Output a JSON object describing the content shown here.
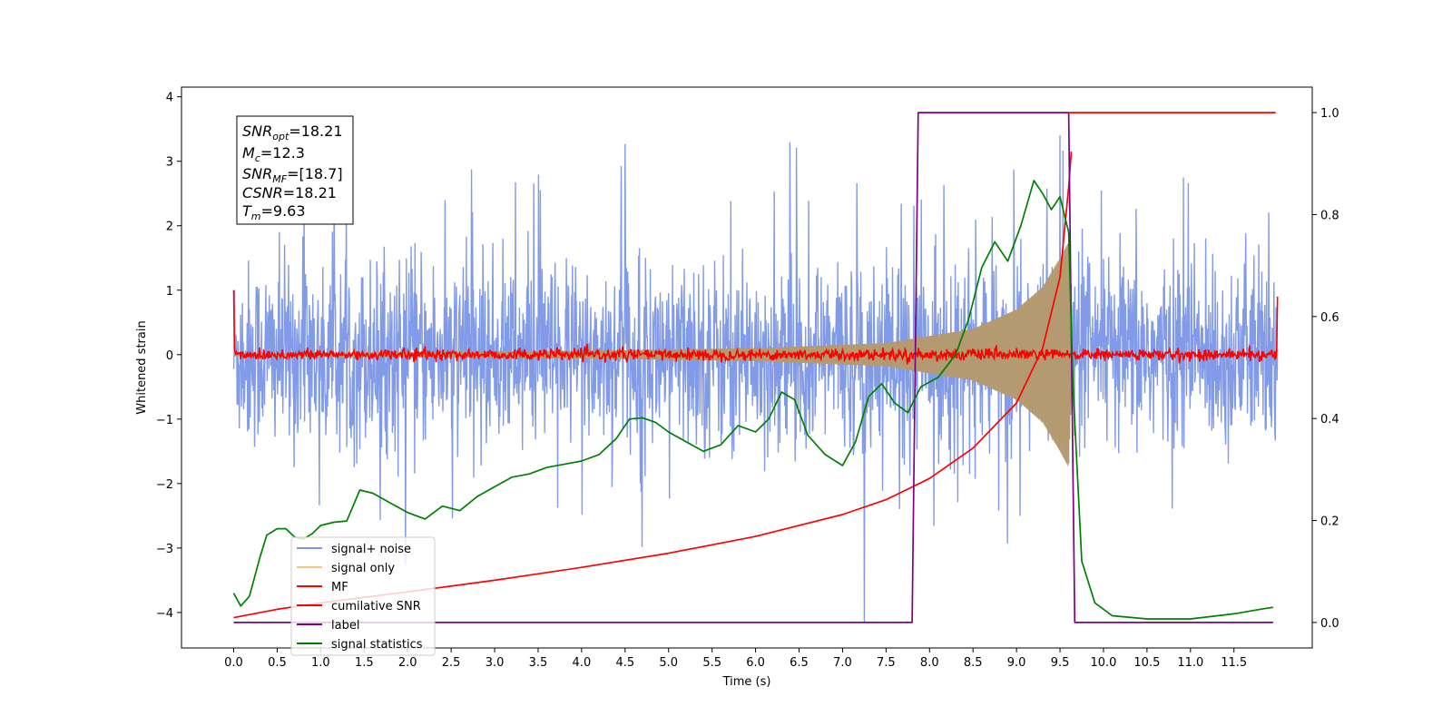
{
  "chart_data": {
    "type": "line",
    "xlabel": "Time (s)",
    "ylabel": "Whitened strain",
    "xlim": [
      -0.6,
      12.4
    ],
    "ylim": [
      -4.55,
      4.15
    ],
    "y2lim": [
      -0.05,
      1.05
    ],
    "x_ticks": [
      "0.0",
      "0.5",
      "1.0",
      "1.5",
      "2.0",
      "2.5",
      "3.0",
      "3.5",
      "4.0",
      "4.5",
      "5.0",
      "5.5",
      "6.0",
      "6.5",
      "7.0",
      "7.5",
      "8.0",
      "8.5",
      "9.0",
      "9.5",
      "10.0",
      "10.5",
      "11.0",
      "11.5"
    ],
    "y_ticks": [
      4,
      3,
      2,
      1,
      0,
      -1,
      -2,
      -3,
      -4
    ],
    "y2_ticks": [
      "0.0",
      "0.2",
      "0.4",
      "0.6",
      "0.8",
      "1.0"
    ],
    "annotation": {
      "snr_opt": {
        "main": "SNR",
        "sub": "opt",
        "value": "=18.21"
      },
      "mc": {
        "main": "M",
        "sub": "c",
        "value": "=12.3"
      },
      "snr_mf": {
        "main": "SNR",
        "sub": "MF",
        "value": "=[18.7]"
      },
      "csnr": {
        "main": "CSNR",
        "value": "=18.21"
      },
      "tm": {
        "main": "T",
        "sub": "m",
        "value": "=9.63"
      }
    },
    "legend": {
      "placement": "lower-left",
      "entries": [
        "signal+ noise",
        "signal only",
        "MF",
        "cumilative SNR",
        "label",
        "signal statistics"
      ]
    },
    "colors": {
      "signal_noise": "#7b96e8",
      "signal_only": "#f5c77e",
      "mf": "#ff0000",
      "cumulative_snr": "#ff0000",
      "label": "#800080",
      "signal_statistics": "#008000"
    },
    "series": [
      {
        "name": "signal+ noise",
        "axis": "left",
        "style": "noise",
        "x_range": [
          0.0,
          12.0
        ],
        "noise_band": [
          -1.5,
          1.5
        ],
        "spike_max": 3.4,
        "spike_min": -4.15
      },
      {
        "name": "signal only",
        "axis": "left",
        "style": "chirp",
        "x_range": [
          0.0,
          9.65
        ],
        "envelope": [
          [
            0.0,
            0.02
          ],
          [
            4.0,
            0.06
          ],
          [
            6.0,
            0.1
          ],
          [
            7.5,
            0.18
          ],
          [
            8.5,
            0.4
          ],
          [
            9.0,
            0.7
          ],
          [
            9.3,
            1.05
          ],
          [
            9.5,
            1.5
          ],
          [
            9.6,
            1.75
          ],
          [
            9.65,
            0.0
          ]
        ]
      },
      {
        "name": "MF",
        "axis": "left",
        "style": "noise",
        "x_range": [
          0.0,
          12.0
        ],
        "center": 0.0,
        "amplitude": 0.08,
        "edge_start": 1.0,
        "edge_end": 0.9
      },
      {
        "name": "cumilative SNR",
        "axis": "left",
        "style": "line",
        "points": [
          [
            0.0,
            -4.08
          ],
          [
            0.5,
            -3.95
          ],
          [
            1.0,
            -3.85
          ],
          [
            2.0,
            -3.68
          ],
          [
            3.0,
            -3.5
          ],
          [
            4.0,
            -3.3
          ],
          [
            5.0,
            -3.08
          ],
          [
            6.0,
            -2.82
          ],
          [
            7.0,
            -2.48
          ],
          [
            7.5,
            -2.25
          ],
          [
            8.0,
            -1.92
          ],
          [
            8.5,
            -1.45
          ],
          [
            9.0,
            -0.75
          ],
          [
            9.3,
            0.1
          ],
          [
            9.5,
            1.2
          ],
          [
            9.6,
            2.6
          ],
          [
            9.63,
            3.15
          ]
        ]
      },
      {
        "name": "label",
        "axis": "right",
        "style": "line",
        "points": [
          [
            0.0,
            0.0
          ],
          [
            7.8,
            0.0
          ],
          [
            7.87,
            1.0
          ],
          [
            9.6,
            1.0
          ],
          [
            9.67,
            0.0
          ],
          [
            11.95,
            0.0
          ]
        ]
      },
      {
        "name": "MF",
        "axis": "right",
        "style": "line",
        "points": [
          [
            9.6,
            1.0
          ],
          [
            11.98,
            1.0
          ]
        ]
      },
      {
        "name": "signal statistics",
        "axis": "left",
        "style": "line",
        "points": [
          [
            0.0,
            -3.7
          ],
          [
            0.08,
            -3.9
          ],
          [
            0.18,
            -3.75
          ],
          [
            0.3,
            -3.15
          ],
          [
            0.38,
            -2.8
          ],
          [
            0.5,
            -2.7
          ],
          [
            0.6,
            -2.7
          ],
          [
            0.7,
            -2.83
          ],
          [
            0.8,
            -2.86
          ],
          [
            0.9,
            -2.78
          ],
          [
            1.0,
            -2.65
          ],
          [
            1.15,
            -2.6
          ],
          [
            1.3,
            -2.58
          ],
          [
            1.45,
            -2.1
          ],
          [
            1.6,
            -2.15
          ],
          [
            1.8,
            -2.3
          ],
          [
            2.0,
            -2.45
          ],
          [
            2.2,
            -2.55
          ],
          [
            2.4,
            -2.35
          ],
          [
            2.6,
            -2.42
          ],
          [
            2.8,
            -2.2
          ],
          [
            3.0,
            -2.05
          ],
          [
            3.2,
            -1.9
          ],
          [
            3.4,
            -1.85
          ],
          [
            3.6,
            -1.75
          ],
          [
            3.8,
            -1.7
          ],
          [
            4.0,
            -1.65
          ],
          [
            4.2,
            -1.55
          ],
          [
            4.4,
            -1.3
          ],
          [
            4.55,
            -1.0
          ],
          [
            4.7,
            -0.98
          ],
          [
            4.85,
            -1.05
          ],
          [
            5.0,
            -1.2
          ],
          [
            5.2,
            -1.35
          ],
          [
            5.4,
            -1.5
          ],
          [
            5.6,
            -1.4
          ],
          [
            5.8,
            -1.1
          ],
          [
            6.0,
            -1.2
          ],
          [
            6.15,
            -1.0
          ],
          [
            6.3,
            -0.58
          ],
          [
            6.45,
            -0.7
          ],
          [
            6.6,
            -1.25
          ],
          [
            6.8,
            -1.55
          ],
          [
            7.0,
            -1.72
          ],
          [
            7.15,
            -1.35
          ],
          [
            7.3,
            -0.65
          ],
          [
            7.45,
            -0.45
          ],
          [
            7.6,
            -0.75
          ],
          [
            7.75,
            -0.9
          ],
          [
            7.9,
            -0.5
          ],
          [
            8.1,
            -0.35
          ],
          [
            8.3,
            0.0
          ],
          [
            8.45,
            0.55
          ],
          [
            8.6,
            1.35
          ],
          [
            8.75,
            1.75
          ],
          [
            8.9,
            1.45
          ],
          [
            9.05,
            2.0
          ],
          [
            9.2,
            2.7
          ],
          [
            9.3,
            2.5
          ],
          [
            9.4,
            2.25
          ],
          [
            9.5,
            2.45
          ],
          [
            9.6,
            1.9
          ],
          [
            9.65,
            -0.5
          ],
          [
            9.75,
            -3.2
          ],
          [
            9.9,
            -3.85
          ],
          [
            10.1,
            -4.05
          ],
          [
            10.5,
            -4.1
          ],
          [
            11.0,
            -4.1
          ],
          [
            11.5,
            -4.02
          ],
          [
            11.8,
            -3.95
          ],
          [
            11.95,
            -3.92
          ]
        ]
      }
    ]
  }
}
